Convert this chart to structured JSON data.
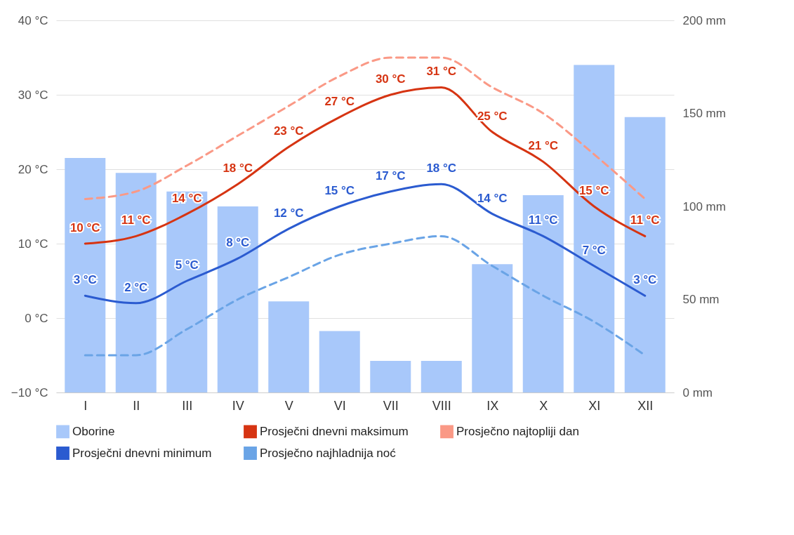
{
  "chart_data": {
    "type": "line",
    "categories": [
      "I",
      "II",
      "III",
      "IV",
      "V",
      "VI",
      "VII",
      "VIII",
      "IX",
      "X",
      "XI",
      "XII"
    ],
    "series": [
      {
        "name": "Oborine",
        "type": "bar",
        "axis": "y2",
        "color": "#a8c8fa",
        "values": [
          126,
          118,
          108,
          100,
          49,
          33,
          17,
          17,
          69,
          106,
          176,
          148
        ]
      },
      {
        "name": "Prosječni dnevni maksimum",
        "color": "#d63412",
        "line_style": "solid",
        "values": [
          10,
          11,
          14,
          18,
          23,
          27,
          30,
          31,
          25,
          21,
          15,
          11
        ],
        "value_labels": [
          "10 °C",
          "11 °C",
          "14 °C",
          "18 °C",
          "23 °C",
          "27 °C",
          "30 °C",
          "31 °C",
          "25 °C",
          "21 °C",
          "15 °C",
          "11 °C"
        ]
      },
      {
        "name": "Prosječno najtopliji dan",
        "color": "#fa9986",
        "line_style": "dashed",
        "values": [
          16,
          17,
          20.5,
          24.5,
          28.5,
          32.5,
          35,
          35,
          31,
          27.5,
          22,
          16
        ]
      },
      {
        "name": "Prosječni dnevni minimum",
        "color": "#2b5bd0",
        "line_style": "solid",
        "values": [
          3,
          2,
          5,
          8,
          12,
          15,
          17,
          18,
          14,
          11,
          7,
          3
        ],
        "value_labels": [
          "3 °C",
          "2 °C",
          "5 °C",
          "8 °C",
          "12 °C",
          "15 °C",
          "17 °C",
          "18 °C",
          "14 °C",
          "11 °C",
          "7 °C",
          "3 °C"
        ]
      },
      {
        "name": "Prosječno najhladnija noć",
        "color": "#6aa4e6",
        "line_style": "dashed",
        "values": [
          -5,
          -5,
          -1.5,
          2.5,
          5.5,
          8.5,
          10,
          11,
          7,
          3,
          -0.5,
          -5
        ]
      }
    ],
    "ylim": [
      -10,
      40
    ],
    "yticks": [
      {
        "value": -10,
        "label": "−10 °C"
      },
      {
        "value": 0,
        "label": "0 °C"
      },
      {
        "value": 10,
        "label": "10 °C"
      },
      {
        "value": 20,
        "label": "20 °C"
      },
      {
        "value": 30,
        "label": "30 °C"
      },
      {
        "value": 40,
        "label": "40 °C"
      }
    ],
    "y2lim": [
      0,
      200
    ],
    "y2ticks": [
      {
        "value": 0,
        "label": "0 mm"
      },
      {
        "value": 50,
        "label": "50 mm"
      },
      {
        "value": 100,
        "label": "100 mm"
      },
      {
        "value": 150,
        "label": "150 mm"
      },
      {
        "value": 200,
        "label": "200 mm"
      }
    ],
    "grid": "y",
    "legend": "bottom"
  }
}
